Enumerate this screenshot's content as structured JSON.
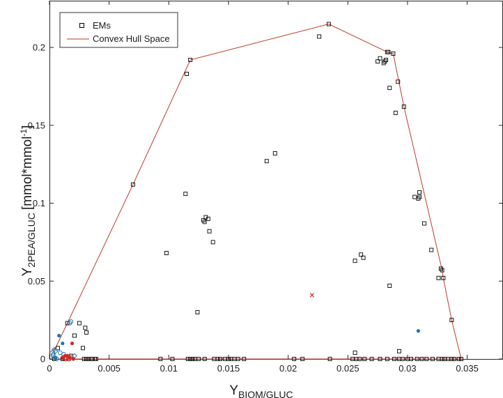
{
  "chart_data": {
    "type": "scatter",
    "xlabel_main": "Y",
    "xlabel_sub": "BIOM/GLUC",
    "ylabel_main": "Y",
    "ylabel_sub": "2PEA/GLUC",
    "ylabel_unit": "[mmol*mmol",
    "ylabel_unit_sup": "-1",
    "ylabel_unit_end": "]",
    "xlim": [
      0,
      0.038
    ],
    "ylim": [
      0,
      0.23
    ],
    "xticks": [
      0,
      0.005,
      0.01,
      0.015,
      0.02,
      0.025,
      0.03,
      0.035
    ],
    "xtick_labels": [
      "0",
      "0.005",
      "0.01",
      "0.015",
      "0.02",
      "0.025",
      "0.03",
      "0.035"
    ],
    "yticks": [
      0,
      0.05,
      0.1,
      0.15,
      0.2
    ],
    "ytick_labels": [
      "0",
      "0.05",
      "0.1",
      "0.15",
      "0.2"
    ],
    "grid": false,
    "legend_position": "top-left",
    "legend": [
      {
        "label": "EMs",
        "marker": "square",
        "color": "#000000"
      },
      {
        "label": "Convex Hull Space",
        "marker": "line",
        "color": "#c0392b"
      }
    ],
    "series": [
      {
        "name": "EMs",
        "marker": "square",
        "color": "#000000",
        "points": [
          [
            0.0007,
            0.007
          ],
          [
            0.0015,
            0.023
          ],
          [
            0.0025,
            0.023
          ],
          [
            0.003,
            0.02
          ],
          [
            0.0031,
            0.017
          ],
          [
            0.0021,
            0.015
          ],
          [
            0.0028,
            0.007
          ],
          [
            0.0018,
            0.002
          ],
          [
            0.007,
            0.112
          ],
          [
            0.0098,
            0.068
          ],
          [
            0.0115,
            0.183
          ],
          [
            0.0118,
            0.192
          ],
          [
            0.0114,
            0.106
          ],
          [
            0.0124,
            0.03
          ],
          [
            0.0129,
            0.089
          ],
          [
            0.013,
            0.088
          ],
          [
            0.0131,
            0.091
          ],
          [
            0.0133,
            0.09
          ],
          [
            0.0134,
            0.082
          ],
          [
            0.0137,
            0.075
          ],
          [
            0.0182,
            0.127
          ],
          [
            0.0189,
            0.132
          ],
          [
            0.0226,
            0.207
          ],
          [
            0.0234,
            0.215
          ],
          [
            0.0256,
            0.063
          ],
          [
            0.0261,
            0.067
          ],
          [
            0.0263,
            0.065
          ],
          [
            0.0285,
            0.047
          ],
          [
            0.0256,
            0.004
          ],
          [
            0.0275,
            0.191
          ],
          [
            0.0277,
            0.193
          ],
          [
            0.028,
            0.19
          ],
          [
            0.0281,
            0.191
          ],
          [
            0.0282,
            0.192
          ],
          [
            0.0283,
            0.197
          ],
          [
            0.0284,
            0.197
          ],
          [
            0.0285,
            0.174
          ],
          [
            0.0288,
            0.196
          ],
          [
            0.029,
            0.158
          ],
          [
            0.0292,
            0.178
          ],
          [
            0.0297,
            0.162
          ],
          [
            0.0306,
            0.104
          ],
          [
            0.0309,
            0.103
          ],
          [
            0.031,
            0.107
          ],
          [
            0.031,
            0.104
          ],
          [
            0.0314,
            0.087
          ],
          [
            0.032,
            0.07
          ],
          [
            0.0326,
            0.052
          ],
          [
            0.0328,
            0.058
          ],
          [
            0.0329,
            0.057
          ],
          [
            0.033,
            0.052
          ],
          [
            0.0337,
            0.025
          ],
          [
            0.0293,
            0.005
          ],
          [
            0.0004,
            0.0
          ],
          [
            0.0011,
            0.0
          ],
          [
            0.0013,
            0.0
          ],
          [
            0.0016,
            0.0
          ],
          [
            0.0029,
            0.0
          ],
          [
            0.0031,
            0.0
          ],
          [
            0.0033,
            0.0
          ],
          [
            0.0035,
            0.0
          ],
          [
            0.0036,
            0.0
          ],
          [
            0.0038,
            0.0
          ],
          [
            0.0039,
            0.0
          ],
          [
            0.0093,
            0.0
          ],
          [
            0.0103,
            0.0
          ],
          [
            0.0116,
            0.0
          ],
          [
            0.0118,
            0.0
          ],
          [
            0.012,
            0.0
          ],
          [
            0.0122,
            0.0
          ],
          [
            0.0125,
            0.0
          ],
          [
            0.013,
            0.0
          ],
          [
            0.0138,
            0.0
          ],
          [
            0.0141,
            0.0
          ],
          [
            0.0143,
            0.0
          ],
          [
            0.0147,
            0.0
          ],
          [
            0.015,
            0.0
          ],
          [
            0.0152,
            0.0
          ],
          [
            0.0155,
            0.0
          ],
          [
            0.0158,
            0.0
          ],
          [
            0.0163,
            0.0
          ],
          [
            0.0205,
            0.0
          ],
          [
            0.0212,
            0.0
          ],
          [
            0.0235,
            0.0
          ],
          [
            0.0254,
            0.0
          ],
          [
            0.0257,
            0.0
          ],
          [
            0.026,
            0.0
          ],
          [
            0.0264,
            0.0
          ],
          [
            0.027,
            0.0
          ],
          [
            0.0277,
            0.0
          ],
          [
            0.0283,
            0.0
          ],
          [
            0.0289,
            0.0
          ],
          [
            0.0293,
            0.0
          ],
          [
            0.0296,
            0.0
          ],
          [
            0.03,
            0.0
          ],
          [
            0.0303,
            0.0
          ],
          [
            0.0308,
            0.0
          ],
          [
            0.0312,
            0.0
          ],
          [
            0.0316,
            0.0
          ],
          [
            0.0321,
            0.0
          ],
          [
            0.0326,
            0.0
          ],
          [
            0.0329,
            0.0
          ],
          [
            0.0331,
            0.0
          ],
          [
            0.0334,
            0.0
          ],
          [
            0.0337,
            0.0
          ],
          [
            0.0339,
            0.0
          ],
          [
            0.0343,
            0.0
          ],
          [
            0.0345,
            0.0
          ]
        ]
      },
      {
        "marker": "line",
        "color": "#c0392b",
        "points": [
          [
            0.0,
            0.0
          ],
          [
            0.0,
            0.004
          ],
          [
            0.0005,
            0.007
          ],
          [
            0.0015,
            0.023
          ],
          [
            0.007,
            0.112
          ],
          [
            0.0118,
            0.192
          ],
          [
            0.0234,
            0.215
          ],
          [
            0.0283,
            0.197
          ],
          [
            0.0288,
            0.196
          ],
          [
            0.0297,
            0.162
          ],
          [
            0.0329,
            0.057
          ],
          [
            0.033,
            0.052
          ],
          [
            0.0337,
            0.025
          ],
          [
            0.0345,
            0.0
          ],
          [
            0.0,
            0.0
          ]
        ]
      },
      {
        "marker": "open-circle",
        "color": "#1f77b4",
        "points": [
          [
            0.0018,
            0.024
          ],
          [
            0.0017,
            0.023
          ],
          [
            0.0009,
            0.004
          ],
          [
            0.0003,
            0.002
          ],
          [
            0.0012,
            0.003
          ],
          [
            0.0006,
            0.0
          ]
        ]
      },
      {
        "marker": "dot",
        "color": "#1f77b4",
        "points": [
          [
            0.0008,
            0.015
          ],
          [
            0.0011,
            0.01
          ],
          [
            0.0309,
            0.018
          ],
          [
            0.0005,
            0.001
          ]
        ]
      },
      {
        "marker": "diamond",
        "color": "#1f77b4",
        "points": [
          [
            0.0005,
            0.005
          ],
          [
            0.0004,
            0.006
          ],
          [
            0.0003,
            0.003
          ],
          [
            0.0021,
            0.002
          ]
        ]
      },
      {
        "marker": "dot",
        "color": "#d62728",
        "points": [
          [
            0.0019,
            0.01
          ],
          [
            0.0013,
            0.002
          ],
          [
            0.0015,
            0.002
          ],
          [
            0.0017,
            0.001
          ],
          [
            0.0011,
            0.001
          ],
          [
            0.002,
            0.0
          ]
        ]
      },
      {
        "marker": "open-circle",
        "color": "#d62728",
        "points": [
          [
            0.0014,
            0.0
          ],
          [
            0.0018,
            0.001
          ],
          [
            0.0016,
            0.0
          ]
        ]
      },
      {
        "marker": "cross",
        "color": "#d62728",
        "points": [
          [
            0.022,
            0.041
          ]
        ]
      }
    ]
  }
}
